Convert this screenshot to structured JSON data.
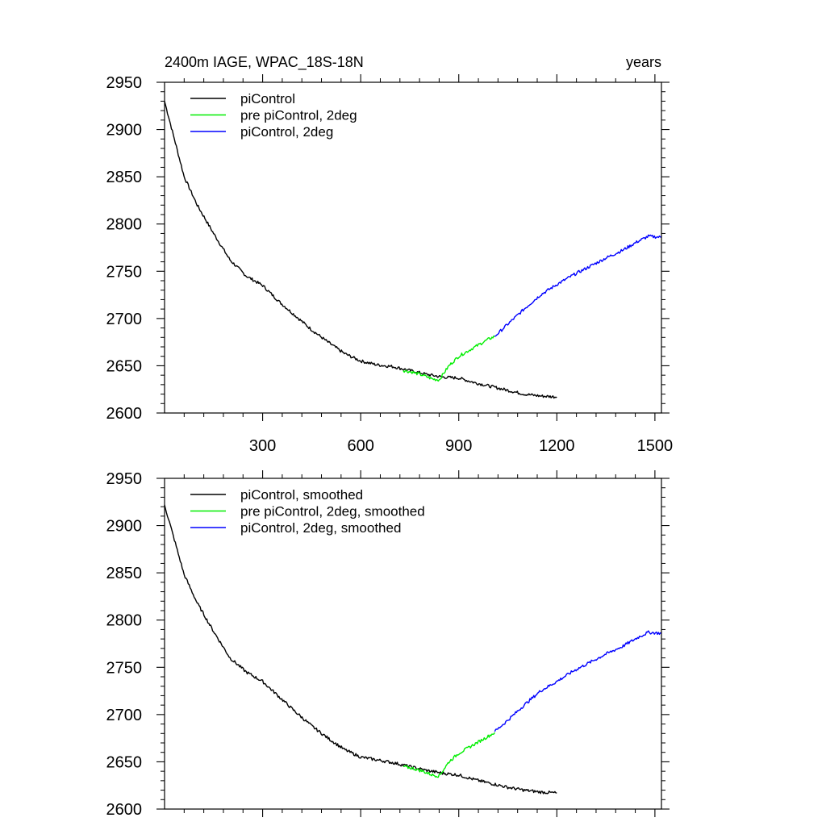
{
  "chart_data": [
    {
      "type": "line",
      "title_left": "2400m IAGE, WPAC_18S-18N",
      "title_right": "years",
      "xlabel": "",
      "ylabel": "",
      "xlim": [
        0,
        1520
      ],
      "ylim": [
        2600,
        2950
      ],
      "x_ticks": [
        300,
        600,
        900,
        1200,
        1500
      ],
      "x_tick_labels": [
        "300",
        "600",
        "900",
        "1200",
        "1500"
      ],
      "y_ticks": [
        2600,
        2650,
        2700,
        2750,
        2800,
        2850,
        2900,
        2950
      ],
      "y_tick_labels": [
        "2600",
        "2650",
        "2700",
        "2750",
        "2800",
        "2850",
        "2900",
        "2950"
      ],
      "legend_position": "top-left",
      "series": [
        {
          "name": "piControl",
          "color": "#000000",
          "points": [
            [
              0,
              2930
            ],
            [
              30,
              2890
            ],
            [
              60,
              2850
            ],
            [
              100,
              2820
            ],
            [
              150,
              2790
            ],
            [
              200,
              2762
            ],
            [
              250,
              2745
            ],
            [
              300,
              2735
            ],
            [
              350,
              2718
            ],
            [
              400,
              2703
            ],
            [
              450,
              2688
            ],
            [
              500,
              2675
            ],
            [
              550,
              2663
            ],
            [
              600,
              2655
            ],
            [
              650,
              2651
            ],
            [
              700,
              2649
            ],
            [
              750,
              2645
            ],
            [
              800,
              2641
            ],
            [
              850,
              2638
            ],
            [
              900,
              2637
            ],
            [
              950,
              2632
            ],
            [
              1000,
              2628
            ],
            [
              1050,
              2624
            ],
            [
              1100,
              2620
            ],
            [
              1150,
              2618
            ],
            [
              1200,
              2617
            ]
          ]
        },
        {
          "name": "pre piControl, 2deg",
          "color": "#00ee00",
          "points": [
            [
              730,
              2645
            ],
            [
              760,
              2643
            ],
            [
              790,
              2640
            ],
            [
              820,
              2636
            ],
            [
              840,
              2635
            ],
            [
              850,
              2640
            ],
            [
              870,
              2650
            ],
            [
              900,
              2660
            ],
            [
              930,
              2666
            ],
            [
              960,
              2672
            ],
            [
              990,
              2678
            ],
            [
              1010,
              2681
            ]
          ]
        },
        {
          "name": "piControl, 2deg",
          "color": "#0000ff",
          "points": [
            [
              1010,
              2681
            ],
            [
              1050,
              2694
            ],
            [
              1100,
              2710
            ],
            [
              1150,
              2725
            ],
            [
              1200,
              2736
            ],
            [
              1250,
              2746
            ],
            [
              1300,
              2755
            ],
            [
              1350,
              2764
            ],
            [
              1400,
              2772
            ],
            [
              1450,
              2782
            ],
            [
              1480,
              2787
            ],
            [
              1520,
              2786
            ]
          ]
        }
      ]
    },
    {
      "type": "line",
      "title_left": "",
      "title_right": "",
      "xlabel": "",
      "ylabel": "",
      "xlim": [
        0,
        1520
      ],
      "ylim": [
        2600,
        2950
      ],
      "x_ticks": [
        300,
        600,
        900,
        1200,
        1500
      ],
      "x_tick_labels": [],
      "y_ticks": [
        2600,
        2650,
        2700,
        2750,
        2800,
        2850,
        2900,
        2950
      ],
      "y_tick_labels": [
        "2600",
        "2650",
        "2700",
        "2750",
        "2800",
        "2850",
        "2900",
        "2950"
      ],
      "legend_position": "top-left",
      "series": [
        {
          "name": "piControl, smoothed",
          "color": "#000000",
          "points": [
            [
              0,
              2922
            ],
            [
              30,
              2885
            ],
            [
              60,
              2848
            ],
            [
              100,
              2818
            ],
            [
              150,
              2788
            ],
            [
              200,
              2760
            ],
            [
              250,
              2745
            ],
            [
              300,
              2735
            ],
            [
              350,
              2719
            ],
            [
              400,
              2703
            ],
            [
              450,
              2688
            ],
            [
              500,
              2675
            ],
            [
              550,
              2663
            ],
            [
              600,
              2655
            ],
            [
              650,
              2652
            ],
            [
              700,
              2649
            ],
            [
              750,
              2645
            ],
            [
              800,
              2641
            ],
            [
              850,
              2638
            ],
            [
              900,
              2636
            ],
            [
              950,
              2631
            ],
            [
              1000,
              2627
            ],
            [
              1050,
              2623
            ],
            [
              1100,
              2620
            ],
            [
              1150,
              2618
            ],
            [
              1200,
              2617
            ]
          ]
        },
        {
          "name": "pre piControl, 2deg, smoothed",
          "color": "#00ee00",
          "points": [
            [
              730,
              2645
            ],
            [
              760,
              2643
            ],
            [
              790,
              2640
            ],
            [
              820,
              2636
            ],
            [
              840,
              2635
            ],
            [
              850,
              2640
            ],
            [
              870,
              2650
            ],
            [
              900,
              2659
            ],
            [
              930,
              2665
            ],
            [
              960,
              2671
            ],
            [
              990,
              2677
            ],
            [
              1010,
              2681
            ]
          ]
        },
        {
          "name": "piControl, 2deg, smoothed",
          "color": "#0000ff",
          "points": [
            [
              1010,
              2682
            ],
            [
              1050,
              2694
            ],
            [
              1100,
              2710
            ],
            [
              1150,
              2725
            ],
            [
              1200,
              2735
            ],
            [
              1250,
              2746
            ],
            [
              1300,
              2755
            ],
            [
              1350,
              2764
            ],
            [
              1400,
              2772
            ],
            [
              1450,
              2782
            ],
            [
              1480,
              2787
            ],
            [
              1520,
              2786
            ]
          ]
        }
      ]
    }
  ]
}
